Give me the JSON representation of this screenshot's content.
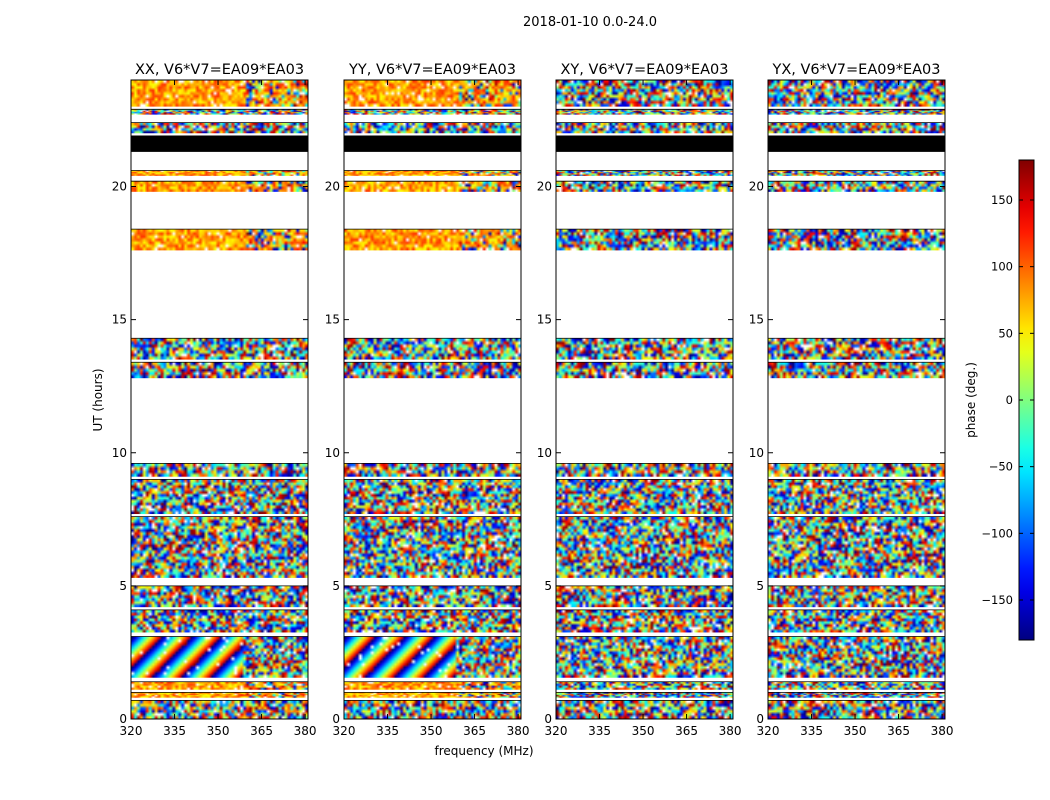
{
  "chart_data": {
    "type": "heatmap",
    "suptitle": "2018-01-10 0.0-24.0",
    "xlabel": "frequency (MHz)",
    "ylabel": "UT (hours)",
    "xlim": [
      320,
      381
    ],
    "ylim": [
      0,
      24
    ],
    "x_ticks": [
      320,
      335,
      350,
      365,
      380
    ],
    "y_ticks": [
      0,
      5,
      10,
      15,
      20
    ],
    "colorbar": {
      "label": "phase (deg.)",
      "range": [
        -180,
        180
      ],
      "ticks": [
        150,
        100,
        50,
        0,
        -50,
        -100,
        -150
      ],
      "tick_labels": [
        "150",
        "100",
        "50",
        "0",
        "−50",
        "−100",
        "−150"
      ],
      "colormap": "jet"
    },
    "panels": [
      {
        "title": "XX, V6*V7=EA09*EA03",
        "pol": "XX"
      },
      {
        "title": "YY, V6*V7=EA09*EA03",
        "pol": "YY"
      },
      {
        "title": "XY, V6*V7=EA09*EA03",
        "pol": "XY"
      },
      {
        "title": "YX, V6*V7=EA09*EA03",
        "pol": "YX"
      }
    ],
    "data_bands_hours": [
      [
        0.0,
        0.7,
        "noise"
      ],
      [
        0.8,
        1.0,
        "coherent"
      ],
      [
        1.1,
        1.4,
        "coherent"
      ],
      [
        1.55,
        3.1,
        "fringe"
      ],
      [
        3.25,
        4.1,
        "noise"
      ],
      [
        4.2,
        5.0,
        "noise"
      ],
      [
        5.3,
        7.6,
        "noise"
      ],
      [
        7.7,
        9.0,
        "noise"
      ],
      [
        9.1,
        9.6,
        "noise"
      ],
      [
        12.8,
        13.4,
        "noise"
      ],
      [
        13.5,
        14.3,
        "noise"
      ],
      [
        17.6,
        18.4,
        "coherent"
      ],
      [
        19.8,
        20.2,
        "coherent"
      ],
      [
        20.4,
        20.6,
        "coherent"
      ],
      [
        21.3,
        21.9,
        "black"
      ],
      [
        22.0,
        22.4,
        "noise"
      ],
      [
        22.7,
        22.9,
        "noise"
      ],
      [
        23.0,
        24.0,
        "coherent"
      ]
    ]
  }
}
